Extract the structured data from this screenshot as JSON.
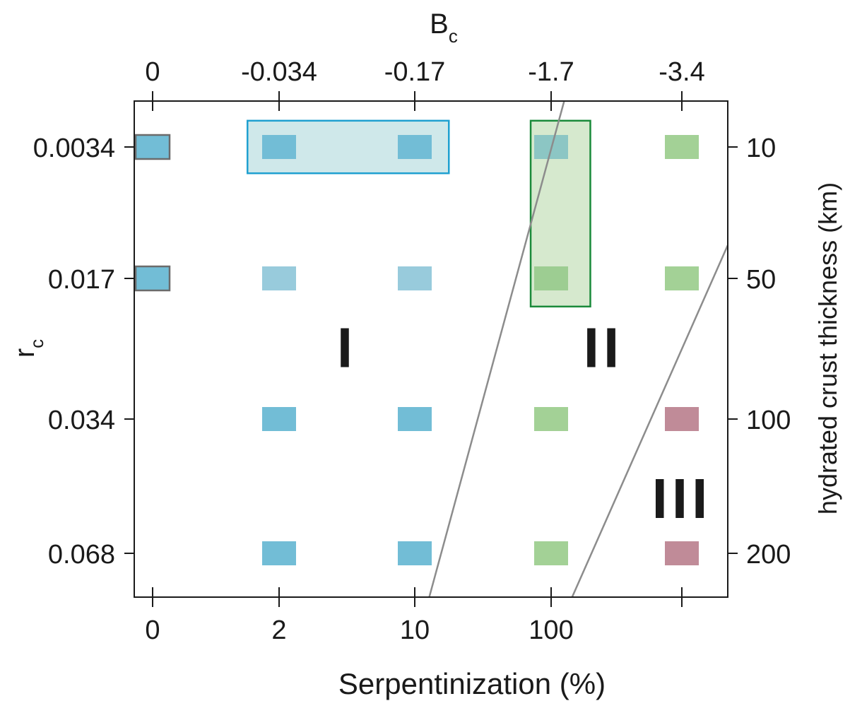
{
  "chart_data": {
    "type": "scatter",
    "x_axis_bottom": {
      "label": "Serpentinization (%)",
      "tick_labels": [
        "0",
        "2",
        "10",
        "100",
        ""
      ]
    },
    "x_axis_top": {
      "label": "B",
      "label_subscript": "c",
      "tick_labels": [
        "0",
        "-0.034",
        "-0.17",
        "-1.7",
        "-3.4"
      ]
    },
    "y_axis_left": {
      "label": "r",
      "label_subscript": "c",
      "tick_labels": [
        "0.0034",
        "0.017",
        "0.034",
        "0.068"
      ]
    },
    "y_axis_right": {
      "label": "hydrated crust thickness (km)",
      "tick_labels": [
        "10",
        "50",
        "100",
        "200"
      ]
    },
    "regions": [
      {
        "label": "I",
        "x": 1.5,
        "y": 1.5
      },
      {
        "label": "II",
        "x": 3.4,
        "y": 1.5
      },
      {
        "label": "III",
        "x": 4.0,
        "y": 2.6
      }
    ],
    "boundaries": [
      {
        "from": [
          2.1,
          3.35
        ],
        "to": [
          3.1,
          -0.35
        ]
      },
      {
        "from": [
          3.15,
          3.35
        ],
        "to": [
          4.35,
          0.75
        ]
      }
    ],
    "highlight_boxes": [
      {
        "x_range": [
          0.75,
          2.25
        ],
        "y_range": [
          -0.2,
          0.2
        ],
        "color": "#1fa0d0",
        "fill": "#cfe8ea"
      },
      {
        "x_range": [
          2.85,
          3.3
        ],
        "y_range": [
          -0.2,
          1.2
        ],
        "color": "#1a8a3a",
        "fill": "#d6e9ce"
      }
    ],
    "points": [
      {
        "x": 0,
        "y": 0,
        "class": "blue",
        "outlined": true
      },
      {
        "x": 1,
        "y": 0,
        "class": "blue"
      },
      {
        "x": 2,
        "y": 0,
        "class": "blue"
      },
      {
        "x": 3,
        "y": 0,
        "class": "teal"
      },
      {
        "x": 4,
        "y": 0,
        "class": "green"
      },
      {
        "x": 0,
        "y": 1,
        "class": "blue",
        "outlined": true
      },
      {
        "x": 1,
        "y": 1,
        "class": "light-blue"
      },
      {
        "x": 2,
        "y": 1,
        "class": "light-blue"
      },
      {
        "x": 3,
        "y": 1,
        "class": "green-dark"
      },
      {
        "x": 4,
        "y": 1,
        "class": "green"
      },
      {
        "x": 1,
        "y": 2,
        "class": "blue"
      },
      {
        "x": 2,
        "y": 2,
        "class": "blue"
      },
      {
        "x": 3,
        "y": 2,
        "class": "green"
      },
      {
        "x": 4,
        "y": 2,
        "class": "mauve"
      },
      {
        "x": 1,
        "y": 3,
        "class": "blue"
      },
      {
        "x": 2,
        "y": 3,
        "class": "blue"
      },
      {
        "x": 3,
        "y": 3,
        "class": "green"
      },
      {
        "x": 4,
        "y": 3,
        "class": "mauve"
      }
    ],
    "colors": {
      "blue": "#72bdd6",
      "light-blue": "#98cbdc",
      "teal": "#7fbfc2",
      "green": "#a3d196",
      "green-dark": "#93c887",
      "mauve": "#c08b98",
      "boundary": "#8c8c8c",
      "axis": "#1a1a1a"
    },
    "grid": false
  }
}
